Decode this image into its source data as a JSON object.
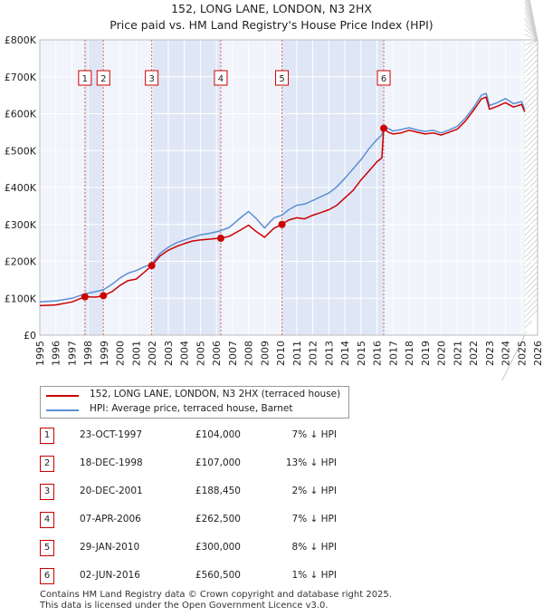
{
  "chart_data": {
    "type": "line",
    "title": "152, LONG LANE, LONDON, N3 2HX",
    "subtitle": "Price paid vs. HM Land Registry's House Price Index (HPI)",
    "xlim": [
      1995,
      2026
    ],
    "ylim": [
      0,
      800000
    ],
    "x_ticks": [
      "1995",
      "1996",
      "1997",
      "1998",
      "1999",
      "2000",
      "2001",
      "2002",
      "2003",
      "2004",
      "2005",
      "2006",
      "2007",
      "2008",
      "2009",
      "2010",
      "2011",
      "2012",
      "2013",
      "2014",
      "2015",
      "2016",
      "2017",
      "2018",
      "2019",
      "2020",
      "2021",
      "2022",
      "2023",
      "2024",
      "2025",
      "2026"
    ],
    "y_ticks": [
      {
        "value": 0,
        "label": "£0"
      },
      {
        "value": 100000,
        "label": "£100K"
      },
      {
        "value": 200000,
        "label": "£200K"
      },
      {
        "value": 300000,
        "label": "£300K"
      },
      {
        "value": 400000,
        "label": "£400K"
      },
      {
        "value": 500000,
        "label": "£500K"
      },
      {
        "value": 600000,
        "label": "£600K"
      },
      {
        "value": 700000,
        "label": "£700K"
      },
      {
        "value": 800000,
        "label": "£800K"
      }
    ],
    "series": [
      {
        "name": "152, LONG LANE, LONDON, N3 2HX (terraced house)",
        "color": "#cc0000",
        "x": [
          1995.0,
          1996.0,
          1997.0,
          1997.81,
          1998.5,
          1998.96,
          1999.5,
          2000.0,
          2000.5,
          2001.0,
          2001.5,
          2001.97,
          2002.5,
          2003.0,
          2003.5,
          2004.0,
          2004.5,
          2005.0,
          2005.5,
          2006.0,
          2006.27,
          2006.8,
          2007.5,
          2008.0,
          2008.5,
          2009.0,
          2009.3,
          2009.6,
          2010.08,
          2010.5,
          2011.0,
          2011.5,
          2012.0,
          2012.5,
          2013.0,
          2013.5,
          2014.0,
          2014.5,
          2015.0,
          2015.5,
          2016.0,
          2016.3,
          2016.42,
          2016.7,
          2017.0,
          2017.5,
          2018.0,
          2018.5,
          2019.0,
          2019.5,
          2020.0,
          2020.5,
          2021.0,
          2021.5,
          2022.0,
          2022.5,
          2022.8,
          2023.0,
          2023.5,
          2024.0,
          2024.5,
          2025.0,
          2025.2
        ],
        "y": [
          80000,
          82000,
          90000,
          104000,
          103000,
          107000,
          118000,
          135000,
          148000,
          152000,
          170000,
          188450,
          215000,
          230000,
          240000,
          248000,
          255000,
          258000,
          260000,
          262000,
          262500,
          268000,
          285000,
          298000,
          280000,
          265000,
          278000,
          290000,
          300000,
          312000,
          318000,
          315000,
          325000,
          332000,
          340000,
          352000,
          372000,
          392000,
          420000,
          445000,
          470000,
          480000,
          560500,
          550000,
          545000,
          548000,
          555000,
          550000,
          545000,
          548000,
          542000,
          550000,
          558000,
          580000,
          608000,
          640000,
          645000,
          612000,
          620000,
          630000,
          618000,
          625000,
          605000
        ]
      },
      {
        "name": "HPI: Average price, terraced house, Barnet",
        "color": "#5b8fd4",
        "x": [
          1995.0,
          1996.0,
          1997.0,
          1997.81,
          1998.5,
          1998.96,
          1999.5,
          2000.0,
          2000.5,
          2001.0,
          2001.5,
          2001.97,
          2002.5,
          2003.0,
          2003.5,
          2004.0,
          2004.5,
          2005.0,
          2005.5,
          2006.0,
          2006.27,
          2006.8,
          2007.5,
          2008.0,
          2008.5,
          2009.0,
          2009.3,
          2009.6,
          2010.08,
          2010.5,
          2011.0,
          2011.5,
          2012.0,
          2012.5,
          2013.0,
          2013.5,
          2014.0,
          2014.5,
          2015.0,
          2015.5,
          2016.0,
          2016.3,
          2016.42,
          2016.7,
          2017.0,
          2017.5,
          2018.0,
          2018.5,
          2019.0,
          2019.5,
          2020.0,
          2020.5,
          2021.0,
          2021.5,
          2022.0,
          2022.5,
          2022.8,
          2023.0,
          2023.5,
          2024.0,
          2024.5,
          2025.0,
          2025.2
        ],
        "y": [
          90000,
          93000,
          100000,
          112000,
          118000,
          123000,
          138000,
          155000,
          168000,
          175000,
          185000,
          193000,
          222000,
          238000,
          250000,
          258000,
          265000,
          272000,
          275000,
          280000,
          283000,
          292000,
          318000,
          335000,
          315000,
          290000,
          305000,
          318000,
          325000,
          340000,
          352000,
          355000,
          365000,
          375000,
          385000,
          402000,
          425000,
          450000,
          475000,
          505000,
          530000,
          542000,
          567000,
          560000,
          553000,
          557000,
          562000,
          556000,
          552000,
          555000,
          548000,
          556000,
          566000,
          588000,
          616000,
          650000,
          655000,
          622000,
          630000,
          641000,
          627000,
          633000,
          612000
        ]
      }
    ],
    "transactions": [
      {
        "num": "1",
        "x": 1997.81,
        "price": 104000,
        "date": "23-OCT-1997",
        "price_label": "£104,000",
        "hpi": "7% ↓ HPI"
      },
      {
        "num": "2",
        "x": 1998.96,
        "price": 107000,
        "date": "18-DEC-1998",
        "price_label": "£107,000",
        "hpi": "13% ↓ HPI"
      },
      {
        "num": "3",
        "x": 2001.97,
        "price": 188450,
        "date": "20-DEC-2001",
        "price_label": "£188,450",
        "hpi": "2% ↓ HPI"
      },
      {
        "num": "4",
        "x": 2006.27,
        "price": 262500,
        "date": "07-APR-2006",
        "price_label": "£262,500",
        "hpi": "7% ↓ HPI"
      },
      {
        "num": "5",
        "x": 2010.08,
        "price": 300000,
        "date": "29-JAN-2010",
        "price_label": "£300,000",
        "hpi": "8% ↓ HPI"
      },
      {
        "num": "6",
        "x": 2016.42,
        "price": 560500,
        "date": "02-JUN-2016",
        "price_label": "£560,500",
        "hpi": "1% ↓ HPI"
      }
    ],
    "shaded_spans": [
      [
        1997.81,
        1998.96
      ],
      [
        2001.97,
        2006.27
      ],
      [
        2010.08,
        2016.42
      ]
    ],
    "future_from": 2025.2,
    "grid": true
  },
  "legend": {
    "property": "152, LONG LANE, LONDON, N3 2HX (terraced house)",
    "hpi": "HPI: Average price, terraced house, Barnet",
    "property_color": "#cc0000",
    "hpi_color": "#5b8fd4"
  },
  "footer": {
    "line1": "Contains HM Land Registry data © Crown copyright and database right 2025.",
    "line2": "This data is licensed under the Open Government Licence v3.0."
  }
}
